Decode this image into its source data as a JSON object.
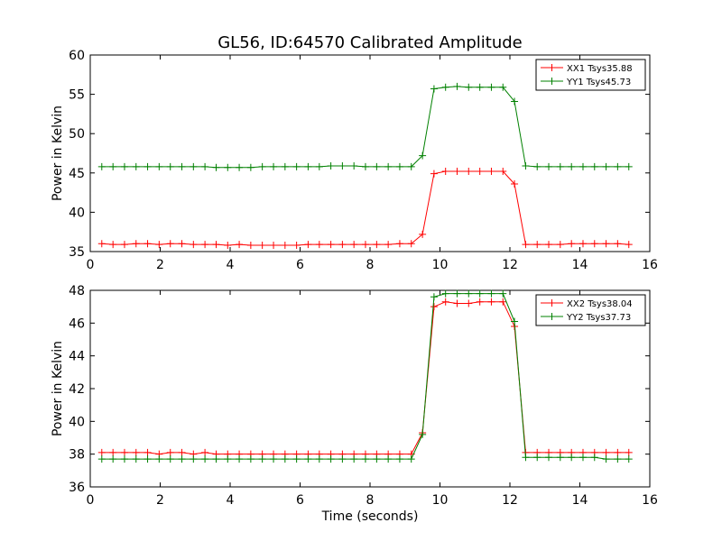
{
  "chart_data": [
    {
      "type": "line",
      "title": "GL56, ID:64570 Calibrated Amplitude",
      "xlabel": "",
      "ylabel": "Power in Kelvin",
      "xlim": [
        0,
        16
      ],
      "ylim": [
        35,
        60
      ],
      "xticks": [
        "0",
        "2",
        "4",
        "6",
        "8",
        "10",
        "12",
        "16"
      ],
      "xticks_all": [
        "0",
        "2",
        "4",
        "6",
        "8",
        "10",
        "12",
        "14",
        "16"
      ],
      "yticks": [
        "35",
        "40",
        "45",
        "50",
        "55",
        "60"
      ],
      "grid": false,
      "legend_position": "upper-right",
      "x": [
        0.33,
        0.65,
        0.98,
        1.31,
        1.64,
        1.97,
        2.29,
        2.62,
        2.95,
        3.28,
        3.6,
        3.93,
        4.26,
        4.59,
        4.92,
        5.24,
        5.57,
        5.9,
        6.23,
        6.55,
        6.88,
        7.21,
        7.54,
        7.87,
        8.19,
        8.52,
        8.85,
        9.18,
        9.5,
        9.83,
        10.16,
        10.49,
        10.82,
        11.14,
        11.47,
        11.8,
        12.13,
        12.45,
        12.78,
        13.11,
        13.44,
        13.76,
        14.09,
        14.42,
        14.75,
        15.08,
        15.4
      ],
      "series": [
        {
          "name": "XX1 Tsys35.88",
          "color": "#ff0000",
          "values": [
            36.0,
            35.9,
            35.9,
            36.0,
            36.0,
            35.9,
            36.0,
            36.0,
            35.9,
            35.9,
            35.9,
            35.8,
            35.9,
            35.8,
            35.8,
            35.8,
            35.8,
            35.8,
            35.9,
            35.9,
            35.9,
            35.9,
            35.9,
            35.9,
            35.9,
            35.9,
            36.0,
            36.0,
            37.2,
            44.9,
            45.2,
            45.2,
            45.2,
            45.2,
            45.2,
            45.2,
            43.6,
            35.9,
            35.9,
            35.9,
            35.9,
            36.0,
            36.0,
            36.0,
            36.0,
            36.0,
            35.9
          ]
        },
        {
          "name": "YY1 Tsys45.73",
          "color": "#008000",
          "values": [
            45.8,
            45.8,
            45.8,
            45.8,
            45.8,
            45.8,
            45.8,
            45.8,
            45.8,
            45.8,
            45.7,
            45.7,
            45.7,
            45.7,
            45.8,
            45.8,
            45.8,
            45.8,
            45.8,
            45.8,
            45.9,
            45.9,
            45.9,
            45.8,
            45.8,
            45.8,
            45.8,
            45.8,
            47.2,
            55.7,
            55.9,
            56.0,
            55.9,
            55.9,
            55.9,
            55.9,
            54.1,
            45.9,
            45.8,
            45.8,
            45.8,
            45.8,
            45.8,
            45.8,
            45.8,
            45.8,
            45.8
          ]
        }
      ]
    },
    {
      "type": "line",
      "title": "",
      "xlabel": "Time (seconds)",
      "ylabel": "Power in Kelvin",
      "xlim": [
        0,
        16
      ],
      "ylim": [
        36,
        48
      ],
      "xticks": [
        "0",
        "2",
        "4",
        "6",
        "8",
        "10",
        "12",
        "14",
        "16"
      ],
      "yticks": [
        "36",
        "38",
        "40",
        "42",
        "44",
        "46",
        "48"
      ],
      "grid": false,
      "legend_position": "upper-right",
      "x": [
        0.33,
        0.65,
        0.98,
        1.31,
        1.64,
        1.97,
        2.29,
        2.62,
        2.95,
        3.28,
        3.6,
        3.93,
        4.26,
        4.59,
        4.92,
        5.24,
        5.57,
        5.9,
        6.23,
        6.55,
        6.88,
        7.21,
        7.54,
        7.87,
        8.19,
        8.52,
        8.85,
        9.18,
        9.5,
        9.83,
        10.16,
        10.49,
        10.82,
        11.14,
        11.47,
        11.8,
        12.13,
        12.45,
        12.78,
        13.11,
        13.44,
        13.76,
        14.09,
        14.42,
        14.75,
        15.08,
        15.4
      ],
      "series": [
        {
          "name": "XX2 Tsys38.04",
          "color": "#ff0000",
          "values": [
            38.1,
            38.1,
            38.1,
            38.1,
            38.1,
            38.0,
            38.1,
            38.1,
            38.0,
            38.1,
            38.0,
            38.0,
            38.0,
            38.0,
            38.0,
            38.0,
            38.0,
            38.0,
            38.0,
            38.0,
            38.0,
            38.0,
            38.0,
            38.0,
            38.0,
            38.0,
            38.0,
            38.0,
            39.3,
            47.0,
            47.3,
            47.2,
            47.2,
            47.3,
            47.3,
            47.3,
            45.8,
            38.1,
            38.1,
            38.1,
            38.1,
            38.1,
            38.1,
            38.1,
            38.1,
            38.1,
            38.1
          ]
        },
        {
          "name": "YY2 Tsys37.73",
          "color": "#008000",
          "values": [
            37.7,
            37.7,
            37.7,
            37.7,
            37.7,
            37.7,
            37.7,
            37.7,
            37.7,
            37.7,
            37.7,
            37.7,
            37.7,
            37.7,
            37.7,
            37.7,
            37.7,
            37.7,
            37.7,
            37.7,
            37.7,
            37.7,
            37.7,
            37.7,
            37.7,
            37.7,
            37.7,
            37.7,
            39.2,
            47.6,
            47.8,
            47.8,
            47.8,
            47.8,
            47.8,
            47.8,
            46.1,
            37.8,
            37.8,
            37.8,
            37.8,
            37.8,
            37.8,
            37.8,
            37.7,
            37.7,
            37.7
          ]
        }
      ]
    }
  ]
}
